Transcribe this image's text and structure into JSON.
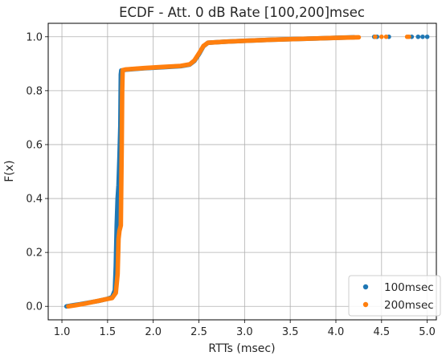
{
  "chart_data": {
    "type": "scatter",
    "title": "ECDF - Att. 0 dB Rate [100,200]msec",
    "xlabel": "RTTs (msec)",
    "ylabel": "F(x)",
    "xlim": [
      0.85,
      5.1
    ],
    "ylim": [
      -0.05,
      1.05
    ],
    "xticks": [
      1.0,
      1.5,
      2.0,
      2.5,
      3.0,
      3.5,
      4.0,
      4.5,
      5.0
    ],
    "xtick_labels": [
      "1.0",
      "1.5",
      "2.0",
      "2.5",
      "3.0",
      "3.5",
      "4.0",
      "4.5",
      "5.0"
    ],
    "yticks": [
      0.0,
      0.2,
      0.4,
      0.6,
      0.8,
      1.0
    ],
    "ytick_labels": [
      "0.0",
      "0.2",
      "0.4",
      "0.6",
      "0.8",
      "1.0"
    ],
    "grid": true,
    "legend_position": "lower-right",
    "series": [
      {
        "name": "100msec",
        "color": "#1f77b4",
        "curve": [
          [
            1.05,
            0.0
          ],
          [
            1.12,
            0.004
          ],
          [
            1.2,
            0.008
          ],
          [
            1.3,
            0.014
          ],
          [
            1.4,
            0.02
          ],
          [
            1.5,
            0.028
          ],
          [
            1.55,
            0.034
          ],
          [
            1.58,
            0.06
          ],
          [
            1.59,
            0.15
          ],
          [
            1.6,
            0.3
          ],
          [
            1.61,
            0.4
          ],
          [
            1.62,
            0.45
          ],
          [
            1.63,
            0.55
          ],
          [
            1.64,
            0.67
          ],
          [
            1.645,
            0.86
          ],
          [
            1.65,
            0.875
          ],
          [
            1.7,
            0.878
          ],
          [
            1.9,
            0.883
          ],
          [
            2.1,
            0.887
          ],
          [
            2.3,
            0.891
          ],
          [
            2.4,
            0.897
          ],
          [
            2.45,
            0.91
          ],
          [
            2.5,
            0.935
          ],
          [
            2.55,
            0.965
          ],
          [
            2.6,
            0.978
          ],
          [
            2.8,
            0.982
          ],
          [
            3.0,
            0.985
          ],
          [
            3.3,
            0.989
          ],
          [
            3.6,
            0.992
          ],
          [
            3.8,
            0.994
          ],
          [
            4.0,
            0.996
          ],
          [
            4.2,
            0.998
          ]
        ],
        "outliers": [
          4.42,
          4.45,
          4.58,
          4.83,
          4.9,
          4.95,
          5.0
        ]
      },
      {
        "name": "200msec",
        "color": "#ff7f0e",
        "curve": [
          [
            1.07,
            0.0
          ],
          [
            1.15,
            0.004
          ],
          [
            1.25,
            0.01
          ],
          [
            1.35,
            0.017
          ],
          [
            1.45,
            0.024
          ],
          [
            1.55,
            0.031
          ],
          [
            1.59,
            0.05
          ],
          [
            1.61,
            0.12
          ],
          [
            1.62,
            0.25
          ],
          [
            1.63,
            0.28
          ],
          [
            1.645,
            0.3
          ],
          [
            1.65,
            0.45
          ],
          [
            1.655,
            0.6
          ],
          [
            1.66,
            0.8
          ],
          [
            1.665,
            0.876
          ],
          [
            1.7,
            0.879
          ],
          [
            1.9,
            0.884
          ],
          [
            2.1,
            0.888
          ],
          [
            2.3,
            0.892
          ],
          [
            2.4,
            0.898
          ],
          [
            2.45,
            0.912
          ],
          [
            2.5,
            0.938
          ],
          [
            2.55,
            0.966
          ],
          [
            2.6,
            0.978
          ],
          [
            2.8,
            0.982
          ],
          [
            3.0,
            0.985
          ],
          [
            3.3,
            0.989
          ],
          [
            3.6,
            0.992
          ],
          [
            3.9,
            0.995
          ],
          [
            4.1,
            0.997
          ],
          [
            4.25,
            0.998
          ]
        ],
        "outliers": [
          4.43,
          4.5,
          4.55,
          4.78,
          4.8
        ]
      }
    ]
  }
}
